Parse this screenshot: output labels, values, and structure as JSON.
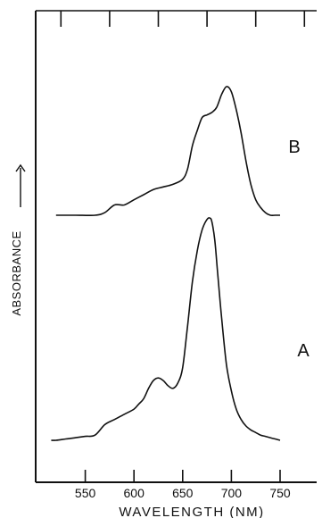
{
  "chart_data": {
    "type": "line",
    "xlabel": "WAVELENGTH (NM)",
    "ylabel": "ABSORBANCE",
    "xlim": [
      500,
      800
    ],
    "x_ticks": [
      550,
      600,
      650,
      700,
      750
    ],
    "x_tick_labels": [
      "550",
      "600",
      "650",
      "700",
      "750"
    ],
    "series": [
      {
        "name": "B",
        "x": [
          520,
          540,
          560,
          570,
          580,
          590,
          600,
          610,
          620,
          630,
          640,
          650,
          655,
          660,
          665,
          670,
          675,
          680,
          685,
          690,
          695,
          700,
          705,
          710,
          715,
          720,
          725,
          730,
          735,
          740,
          745,
          750
        ],
        "y": [
          0.3,
          0.3,
          0.3,
          0.31,
          0.34,
          0.34,
          0.36,
          0.38,
          0.4,
          0.41,
          0.42,
          0.44,
          0.48,
          0.57,
          0.63,
          0.68,
          0.69,
          0.7,
          0.72,
          0.77,
          0.8,
          0.78,
          0.71,
          0.62,
          0.51,
          0.42,
          0.36,
          0.33,
          0.31,
          0.3,
          0.3,
          0.3
        ]
      },
      {
        "name": "A",
        "x": [
          515,
          520,
          530,
          540,
          550,
          560,
          570,
          580,
          590,
          600,
          605,
          610,
          615,
          620,
          625,
          630,
          635,
          640,
          645,
          650,
          655,
          660,
          665,
          670,
          675,
          678,
          680,
          683,
          686,
          690,
          695,
          700,
          705,
          710,
          715,
          720,
          725,
          730,
          735,
          740,
          745,
          750
        ],
        "y": [
          0.01,
          0.01,
          0.015,
          0.02,
          0.025,
          0.03,
          0.07,
          0.09,
          0.11,
          0.13,
          0.15,
          0.17,
          0.21,
          0.24,
          0.25,
          0.24,
          0.22,
          0.21,
          0.23,
          0.29,
          0.45,
          0.62,
          0.74,
          0.82,
          0.86,
          0.865,
          0.85,
          0.78,
          0.65,
          0.48,
          0.3,
          0.2,
          0.13,
          0.09,
          0.065,
          0.05,
          0.04,
          0.03,
          0.025,
          0.02,
          0.015,
          0.01
        ]
      }
    ],
    "grid": false,
    "legend": "none"
  }
}
